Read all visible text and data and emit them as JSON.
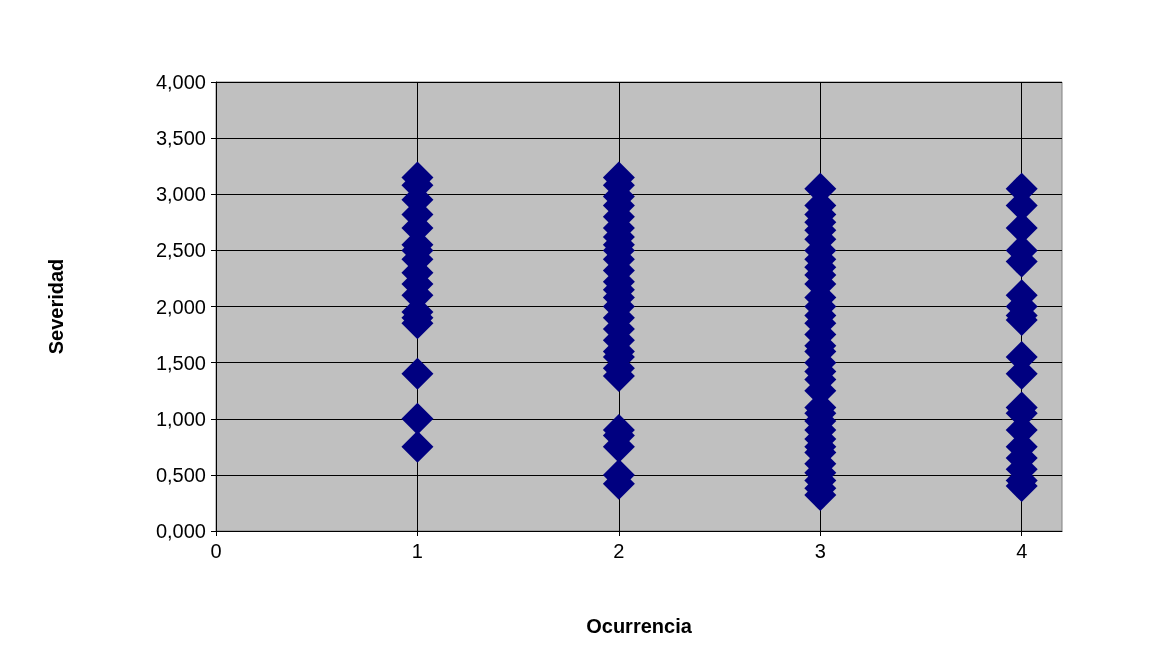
{
  "chart_data": {
    "type": "scatter",
    "xlabel": "Ocurrencia",
    "ylabel": "Severidad",
    "marker": "diamond",
    "grid": true,
    "xlim": [
      0,
      4.2
    ],
    "xticks": [
      0,
      1,
      2,
      3,
      4
    ],
    "ylim": [
      0,
      4
    ],
    "yticks": [
      {
        "value": 0,
        "label": "0,000"
      },
      {
        "value": 0.5,
        "label": "0,500"
      },
      {
        "value": 1,
        "label": "1,000"
      },
      {
        "value": 1.5,
        "label": "1,500"
      },
      {
        "value": 2,
        "label": "2,000"
      },
      {
        "value": 2.5,
        "label": "2,500"
      },
      {
        "value": 3,
        "label": "3,000"
      },
      {
        "value": 3.5,
        "label": "3,500"
      },
      {
        "value": 4,
        "label": "4,000"
      }
    ],
    "series": [
      {
        "color": "#000080",
        "x": [
          1,
          1,
          1,
          1,
          1,
          1,
          1,
          1,
          1,
          1,
          1,
          1,
          1,
          1,
          1,
          1,
          1,
          2,
          2,
          2,
          2,
          2,
          2,
          2,
          2,
          2,
          2,
          2,
          2,
          2,
          2,
          2,
          2,
          2,
          2,
          2,
          2,
          2,
          2,
          2,
          2,
          2,
          2,
          2,
          3,
          3,
          3,
          3,
          3,
          3,
          3,
          3,
          3,
          3,
          3,
          3,
          3,
          3,
          3,
          3,
          3,
          3,
          3,
          3,
          3,
          3,
          3,
          3,
          3,
          3,
          3,
          3,
          3,
          3,
          3,
          3,
          3,
          3,
          4,
          4,
          4,
          4,
          4,
          4,
          4,
          4,
          4,
          4,
          4,
          4,
          4,
          4,
          4,
          4,
          4,
          4,
          4
        ],
        "values": [
          3.15,
          3.08,
          2.95,
          2.82,
          2.7,
          2.55,
          2.5,
          2.42,
          2.3,
          2.2,
          2.1,
          1.95,
          1.9,
          1.85,
          1.4,
          1.0,
          0.75,
          3.15,
          3.08,
          2.98,
          2.9,
          2.8,
          2.7,
          2.62,
          2.55,
          2.5,
          2.42,
          2.32,
          2.22,
          2.15,
          2.08,
          2.0,
          1.9,
          1.8,
          1.7,
          1.6,
          1.55,
          1.45,
          1.38,
          0.9,
          0.85,
          0.75,
          0.5,
          0.42,
          3.05,
          2.9,
          2.82,
          2.75,
          2.68,
          2.6,
          2.5,
          2.42,
          2.35,
          2.28,
          2.2,
          2.08,
          2.0,
          1.92,
          1.85,
          1.75,
          1.65,
          1.6,
          1.5,
          1.42,
          1.35,
          1.25,
          1.1,
          1.05,
          0.98,
          0.9,
          0.82,
          0.75,
          0.7,
          0.6,
          0.52,
          0.45,
          0.38,
          0.32,
          3.05,
          2.9,
          2.7,
          2.5,
          2.4,
          2.1,
          2.0,
          1.92,
          1.88,
          1.55,
          1.4,
          1.1,
          1.05,
          0.9,
          0.75,
          0.65,
          0.55,
          0.45,
          0.4
        ]
      }
    ]
  }
}
